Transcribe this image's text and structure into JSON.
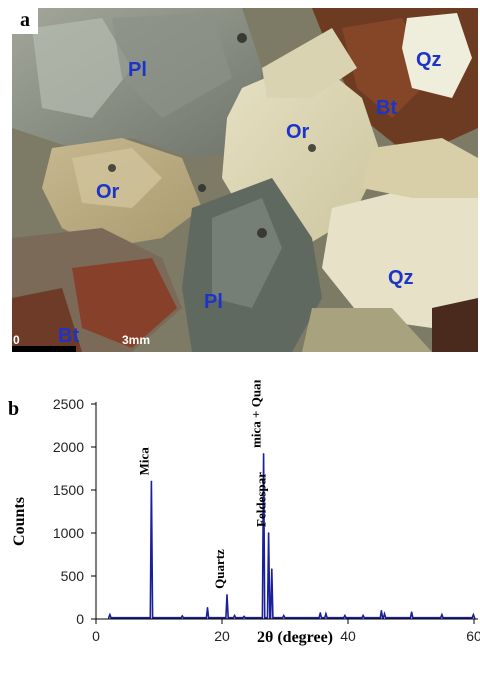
{
  "panel_a": {
    "letter": "a",
    "scale_start": "0",
    "scale_end": "3mm",
    "labels": {
      "pl_top": "Pl",
      "pl_bottom": "Pl",
      "or_left": "Or",
      "or_center": "Or",
      "qz_top": "Qz",
      "qz_bottom": "Qz",
      "bt_right": "Bt",
      "bt_bottom": "Bt"
    }
  },
  "panel_b": {
    "letter": "b"
  },
  "chart_data": {
    "type": "line",
    "xlabel": "2θ (degree)",
    "ylabel": "Counts",
    "xlim": [
      0,
      60
    ],
    "ylim": [
      0,
      2500
    ],
    "xticks": [
      "0",
      "20",
      "40",
      "60"
    ],
    "yticks": [
      "0",
      "500",
      "1000",
      "1500",
      "2000",
      "2500"
    ],
    "line_color": "#1a1f9c",
    "baseline": 15,
    "peaks": [
      {
        "x": 2.2,
        "y": 50
      },
      {
        "x": 8.8,
        "y": 1600
      },
      {
        "x": 13.7,
        "y": 35
      },
      {
        "x": 17.7,
        "y": 130
      },
      {
        "x": 20.8,
        "y": 280
      },
      {
        "x": 22.0,
        "y": 40
      },
      {
        "x": 23.5,
        "y": 30
      },
      {
        "x": 26.6,
        "y": 1920
      },
      {
        "x": 27.4,
        "y": 1000
      },
      {
        "x": 27.9,
        "y": 580
      },
      {
        "x": 29.8,
        "y": 40
      },
      {
        "x": 35.6,
        "y": 70
      },
      {
        "x": 36.5,
        "y": 60
      },
      {
        "x": 39.5,
        "y": 40
      },
      {
        "x": 42.4,
        "y": 40
      },
      {
        "x": 45.3,
        "y": 95
      },
      {
        "x": 45.8,
        "y": 60
      },
      {
        "x": 50.1,
        "y": 80
      },
      {
        "x": 54.9,
        "y": 50
      },
      {
        "x": 59.9,
        "y": 50
      }
    ],
    "annotations": [
      {
        "text": "Mica",
        "x": 8.8,
        "y": 1600
      },
      {
        "text": "Quartz",
        "x": 20.8,
        "y": 280
      },
      {
        "text": "mica + Quartz",
        "x": 26.6,
        "y": 1920
      },
      {
        "text": "Feldespar",
        "x": 27.4,
        "y": 1000
      }
    ]
  }
}
